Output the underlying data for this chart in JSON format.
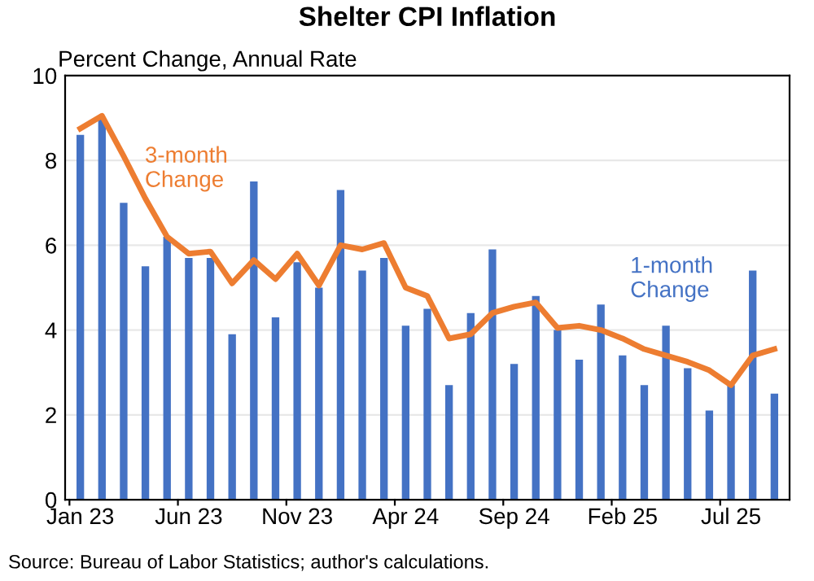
{
  "chart_data": {
    "type": "bar",
    "title": "Shelter CPI Inflation",
    "ylabel": "Percent Change, Annual Rate",
    "categories": [
      "Jan 23",
      null,
      null,
      null,
      null,
      "Jun 23",
      null,
      null,
      null,
      null,
      "Nov 23",
      null,
      null,
      null,
      null,
      "Apr 24",
      null,
      null,
      null,
      null,
      "Sep 24",
      null,
      null,
      null,
      null,
      "Feb 25",
      null,
      null,
      null,
      null,
      "Jul 25",
      null,
      null
    ],
    "series": [
      {
        "name": "1-month\nChange",
        "color": "#4472c4",
        "values": [
          8.6,
          9.0,
          7.0,
          5.5,
          6.2,
          5.7,
          5.7,
          3.9,
          7.5,
          4.3,
          5.6,
          5.0,
          7.3,
          5.4,
          5.7,
          4.1,
          4.5,
          2.7,
          4.4,
          5.9,
          3.2,
          4.8,
          4.0,
          3.3,
          4.6,
          3.4,
          2.7,
          4.1,
          3.1,
          2.1,
          2.7,
          5.4,
          2.5
        ]
      },
      {
        "name": "3-month\nChange",
        "type": "line",
        "color": "#ed7d31",
        "values": [
          8.75,
          9.05,
          8.1,
          7.1,
          6.2,
          5.8,
          5.85,
          5.1,
          5.65,
          5.2,
          5.8,
          5.05,
          6.0,
          5.9,
          6.05,
          5.0,
          4.8,
          3.8,
          3.9,
          4.4,
          4.55,
          4.65,
          4.05,
          4.1,
          4.0,
          3.8,
          3.55,
          3.4,
          3.25,
          3.05,
          2.7,
          3.4,
          3.55
        ]
      }
    ],
    "ylim": [
      0,
      10
    ],
    "yticks": [
      0,
      2,
      4,
      6,
      8,
      10
    ],
    "grid": "y",
    "legend": false,
    "annotations": [
      "Source: Bureau of Labor Statistics; author's calculations."
    ]
  }
}
